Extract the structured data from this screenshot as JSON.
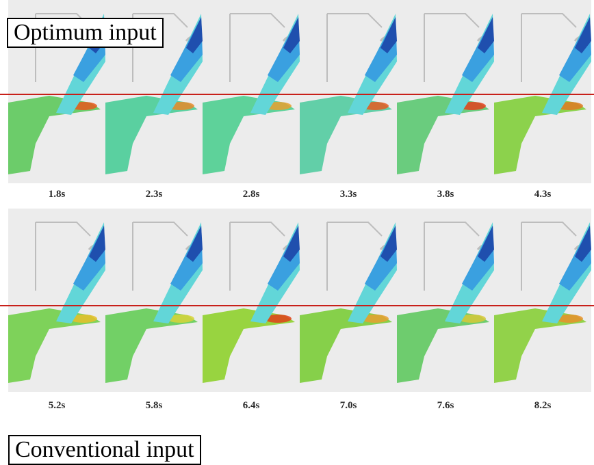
{
  "rows": [
    {
      "caption": "Optimum input",
      "frames": [
        {
          "time": "1.8s",
          "fill": "#6ccc6a",
          "hot": "#e8581c"
        },
        {
          "time": "2.3s",
          "fill": "#5ad0a0",
          "hot": "#e88a2a"
        },
        {
          "time": "2.8s",
          "fill": "#5ed29a",
          "hot": "#e8a030"
        },
        {
          "time": "3.3s",
          "fill": "#62cfa8",
          "hot": "#e85a20"
        },
        {
          "time": "3.8s",
          "fill": "#6acc7e",
          "hot": "#e4401c"
        },
        {
          "time": "4.3s",
          "fill": "#8cd24c",
          "hot": "#e07a22"
        }
      ]
    },
    {
      "caption": "Conventional input",
      "frames": [
        {
          "time": "5.2s",
          "fill": "#7ed25a",
          "hot": "#e8c02a"
        },
        {
          "time": "5.8s",
          "fill": "#72d066",
          "hot": "#d8d43a"
        },
        {
          "time": "6.4s",
          "fill": "#98d440",
          "hot": "#e0401a"
        },
        {
          "time": "7.0s",
          "fill": "#86d04a",
          "hot": "#e8a030"
        },
        {
          "time": "7.6s",
          "fill": "#6ecc6e",
          "hot": "#d8c838"
        },
        {
          "time": "8.2s",
          "fill": "#92d24a",
          "hot": "#e8902a"
        }
      ]
    }
  ],
  "colors": {
    "reference_line": "#c8201a",
    "mold_bg": "#ececec",
    "mold_outline": "#bdbdbd",
    "stream_dark": "#1f4fae",
    "stream_mid": "#3aa0e0",
    "stream_light": "#62d6d8"
  }
}
